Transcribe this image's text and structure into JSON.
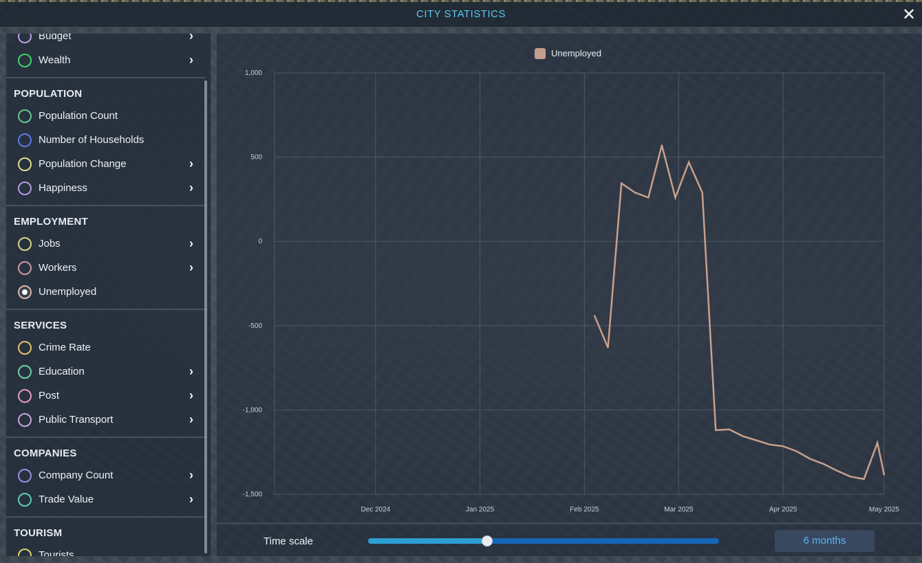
{
  "window": {
    "title": "CITY STATISTICS",
    "close_glyph": "✕"
  },
  "sidebar": {
    "sections": [
      {
        "header": "",
        "items": [
          {
            "label": "Budget",
            "color": "#b9a2e8",
            "chevron": true,
            "selected": false
          },
          {
            "label": "Wealth",
            "color": "#3fd46a",
            "chevron": true,
            "selected": false
          }
        ]
      },
      {
        "header": "POPULATION",
        "items": [
          {
            "label": "Population Count",
            "color": "#63c98a",
            "chevron": false,
            "selected": false
          },
          {
            "label": "Number of Households",
            "color": "#5a7be8",
            "chevron": false,
            "selected": false
          },
          {
            "label": "Population Change",
            "color": "#dfe08a",
            "chevron": true,
            "selected": false
          },
          {
            "label": "Happiness",
            "color": "#b49ae2",
            "chevron": true,
            "selected": false
          }
        ]
      },
      {
        "header": "EMPLOYMENT",
        "items": [
          {
            "label": "Jobs",
            "color": "#d8d48a",
            "chevron": true,
            "selected": false
          },
          {
            "label": "Workers",
            "color": "#c99aa8",
            "chevron": true,
            "selected": false
          },
          {
            "label": "Unemployed",
            "color": "#d8b6a6",
            "chevron": false,
            "selected": true
          }
        ]
      },
      {
        "header": "SERVICES",
        "items": [
          {
            "label": "Crime Rate",
            "color": "#e0c46a",
            "chevron": false,
            "selected": false
          },
          {
            "label": "Education",
            "color": "#6fd0a6",
            "chevron": true,
            "selected": false
          },
          {
            "label": "Post",
            "color": "#e59ac4",
            "chevron": true,
            "selected": false
          },
          {
            "label": "Public Transport",
            "color": "#c6a6d8",
            "chevron": true,
            "selected": false
          }
        ]
      },
      {
        "header": "COMPANIES",
        "items": [
          {
            "label": "Company Count",
            "color": "#9a8fe0",
            "chevron": true,
            "selected": false
          },
          {
            "label": "Trade Value",
            "color": "#5fd0b0",
            "chevron": true,
            "selected": false
          }
        ]
      },
      {
        "header": "TOURISM",
        "items": [
          {
            "label": "Tourists",
            "color": "#e0d46a",
            "chevron": false,
            "selected": false
          }
        ]
      }
    ]
  },
  "chart_data": {
    "type": "line",
    "legend": [
      "Unemployed"
    ],
    "legend_position": "top-center",
    "grid": true,
    "ylim": [
      -1500,
      1000
    ],
    "yticks": [
      1000,
      500,
      0,
      -500,
      -1000,
      -1500
    ],
    "ytick_labels": [
      "1,000",
      "500",
      "0",
      "-500",
      "-1,000",
      "-1,500"
    ],
    "xlim": [
      "2024-11-01",
      "2025-05-01"
    ],
    "xticks": [
      "2024-12-01",
      "2025-01-01",
      "2025-02-01",
      "2025-03-01",
      "2025-04-01",
      "2025-05-01"
    ],
    "xtick_labels": [
      "Dec 2024",
      "Jan 2025",
      "Feb 2025",
      "Mar 2025",
      "Apr 2025",
      "May 2025"
    ],
    "series": [
      {
        "name": "Unemployed",
        "color": "#c8a08c",
        "points": [
          {
            "x": "2025-02-04",
            "y": -440
          },
          {
            "x": "2025-02-08",
            "y": -630
          },
          {
            "x": "2025-02-12",
            "y": 345
          },
          {
            "x": "2025-02-16",
            "y": 290
          },
          {
            "x": "2025-02-20",
            "y": 260
          },
          {
            "x": "2025-02-24",
            "y": 570
          },
          {
            "x": "2025-02-28",
            "y": 260
          },
          {
            "x": "2025-03-04",
            "y": 470
          },
          {
            "x": "2025-03-08",
            "y": 290
          },
          {
            "x": "2025-03-12",
            "y": -1120
          },
          {
            "x": "2025-03-16",
            "y": -1115
          },
          {
            "x": "2025-03-20",
            "y": -1155
          },
          {
            "x": "2025-03-24",
            "y": -1180
          },
          {
            "x": "2025-03-28",
            "y": -1205
          },
          {
            "x": "2025-04-01",
            "y": -1215
          },
          {
            "x": "2025-04-05",
            "y": -1245
          },
          {
            "x": "2025-04-09",
            "y": -1290
          },
          {
            "x": "2025-04-13",
            "y": -1320
          },
          {
            "x": "2025-04-17",
            "y": -1360
          },
          {
            "x": "2025-04-21",
            "y": -1395
          },
          {
            "x": "2025-04-25",
            "y": -1410
          },
          {
            "x": "2025-04-29",
            "y": -1195
          },
          {
            "x": "2025-05-01",
            "y": -1385
          }
        ]
      }
    ]
  },
  "time_scale": {
    "label": "Time scale",
    "value_text": "6 months",
    "slider_fraction": 0.34
  }
}
